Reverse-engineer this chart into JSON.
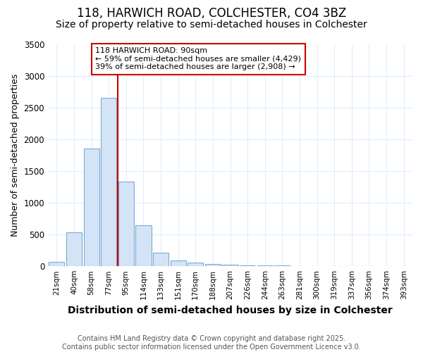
{
  "title_line1": "118, HARWICH ROAD, COLCHESTER, CO4 3BZ",
  "title_line2": "Size of property relative to semi-detached houses in Colchester",
  "xlabel": "Distribution of semi-detached houses by size in Colchester",
  "ylabel": "Number of semi-detached properties",
  "footnote1": "Contains HM Land Registry data © Crown copyright and database right 2025.",
  "footnote2": "Contains public sector information licensed under the Open Government Licence v3.0.",
  "annotation_line1": "118 HARWICH ROAD: 90sqm",
  "annotation_line2": "← 59% of semi-detached houses are smaller (4,429)",
  "annotation_line3": "39% of semi-detached houses are larger (2,908) →",
  "bar_labels": [
    "21sqm",
    "40sqm",
    "58sqm",
    "77sqm",
    "95sqm",
    "114sqm",
    "133sqm",
    "151sqm",
    "170sqm",
    "188sqm",
    "207sqm",
    "226sqm",
    "244sqm",
    "263sqm",
    "281sqm",
    "300sqm",
    "319sqm",
    "337sqm",
    "356sqm",
    "374sqm",
    "393sqm"
  ],
  "bar_values": [
    65,
    530,
    1850,
    2650,
    1330,
    640,
    210,
    95,
    55,
    35,
    20,
    15,
    10,
    8,
    5,
    3,
    2,
    2,
    1,
    1,
    1
  ],
  "bar_color": "#d4e4f7",
  "bar_edge_color": "#7aadd4",
  "vline_color": "#cc0000",
  "vline_index": 4,
  "ylim": [
    0,
    3500
  ],
  "yticks": [
    0,
    500,
    1000,
    1500,
    2000,
    2500,
    3000,
    3500
  ],
  "annotation_box_edgecolor": "#cc0000",
  "background_color": "#ffffff",
  "plot_bg_color": "#ffffff",
  "grid_color": "#ddeeff",
  "title_fontsize": 12,
  "subtitle_fontsize": 10,
  "xlabel_fontsize": 10,
  "ylabel_fontsize": 9,
  "footnote_fontsize": 7,
  "annotation_fontsize": 8
}
